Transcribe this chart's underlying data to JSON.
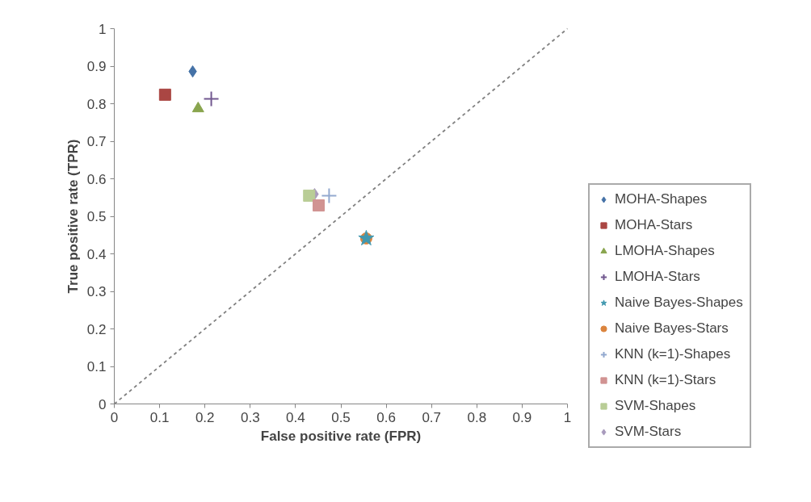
{
  "chart_data": {
    "type": "scatter",
    "xlabel": "False positive rate (FPR)",
    "ylabel": "True positive rate (TPR)",
    "xlim": [
      0,
      1
    ],
    "ylim": [
      0,
      1
    ],
    "xticks": [
      0,
      0.1,
      0.2,
      0.3,
      0.4,
      0.5,
      0.6,
      0.7,
      0.8,
      0.9,
      1
    ],
    "yticks": [
      0,
      0.1,
      0.2,
      0.3,
      0.4,
      0.5,
      0.6,
      0.7,
      0.8,
      0.9,
      1
    ],
    "grid": false,
    "legend": "right",
    "series": [
      {
        "name": "MOHA-Shapes",
        "color": "#4572a7",
        "marker": "diamond",
        "x": [
          0.173
        ],
        "values": [
          0.886
        ]
      },
      {
        "name": "MOHA-Stars",
        "color": "#aa4643",
        "marker": "square",
        "x": [
          0.112
        ],
        "values": [
          0.824
        ]
      },
      {
        "name": "LMOHA-Shapes",
        "color": "#89a54e",
        "marker": "triangle",
        "x": [
          0.185
        ],
        "values": [
          0.787
        ]
      },
      {
        "name": "LMOHA-Stars",
        "color": "#71588f",
        "marker": "cross",
        "x": [
          0.214
        ],
        "values": [
          0.813
        ]
      },
      {
        "name": "Naive Bayes-Shapes",
        "color": "#4198af",
        "marker": "star",
        "x": [
          0.556
        ],
        "values": [
          0.441
        ]
      },
      {
        "name": "Naive Bayes-Stars",
        "color": "#db843d",
        "marker": "circle",
        "x": [
          0.556
        ],
        "values": [
          0.441
        ]
      },
      {
        "name": "KNN (k=1)-Shapes",
        "color": "#93a9cf",
        "marker": "cross",
        "x": [
          0.474
        ],
        "values": [
          0.555
        ]
      },
      {
        "name": "KNN (k=1)-Stars",
        "color": "#d19392",
        "marker": "square",
        "x": [
          0.451
        ],
        "values": [
          0.529
        ]
      },
      {
        "name": "SVM-Shapes",
        "color": "#b9cd96",
        "marker": "square",
        "x": [
          0.43
        ],
        "values": [
          0.555
        ]
      },
      {
        "name": "SVM-Stars",
        "color": "#a99bbd",
        "marker": "diamond",
        "x": [
          0.442
        ],
        "values": [
          0.559
        ]
      },
      {
        "type": "line",
        "color": "#808080",
        "line_style": "dashed",
        "marker": "none",
        "x": [
          0,
          1
        ],
        "values": [
          0,
          1
        ]
      }
    ]
  }
}
